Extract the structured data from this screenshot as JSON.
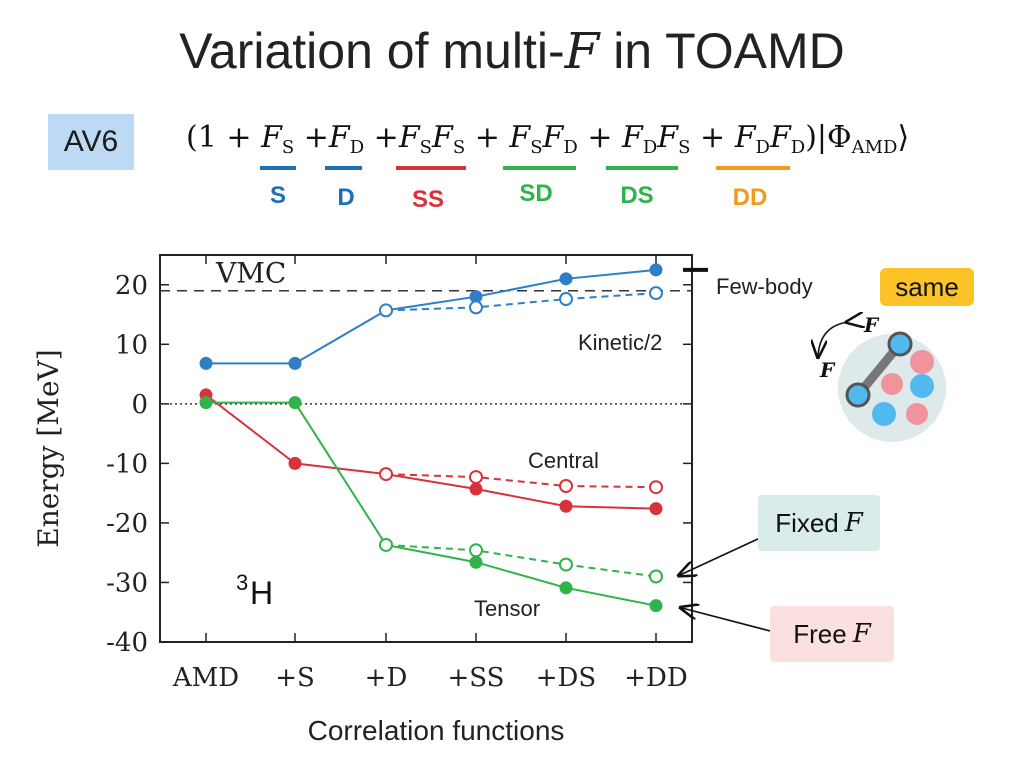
{
  "title": {
    "prefix": "Variation of multi-",
    "math": "F",
    "suffix": " in TOAMD"
  },
  "badge": "AV6",
  "formula": {
    "open": "(1 + ",
    "terms": [
      {
        "base": "F",
        "sub": "S",
        "join": " +"
      },
      {
        "base": "F",
        "sub": "D",
        "join": " +"
      },
      {
        "base": "F",
        "sub": "S",
        "base2": "F",
        "sub2": "S",
        "join": " + "
      },
      {
        "base": "F",
        "sub": "S",
        "base2": "F",
        "sub2": "D",
        "join": " + "
      },
      {
        "base": "F",
        "sub": "D",
        "base2": "F",
        "sub2": "S",
        "join": " + "
      },
      {
        "base": "F",
        "sub": "D",
        "base2": "F",
        "sub2": "D",
        "join": ""
      }
    ],
    "close": ")|Φ",
    "close_sub": "AMD",
    "ket": "⟩"
  },
  "tags": [
    {
      "label": "S",
      "color": "#1f6fb5"
    },
    {
      "label": "D",
      "color": "#1f6fb5"
    },
    {
      "label": "SS",
      "color": "#d6333a"
    },
    {
      "label": "SD",
      "color": "#2fb34a"
    },
    {
      "label": "DS",
      "color": "#2fb34a"
    },
    {
      "label": "DD",
      "color": "#f39a1e"
    }
  ],
  "annotations": {
    "few_body": "Few-body",
    "same": "same",
    "kinetic": "Kinetic/2",
    "central": "Central",
    "tensor": "Tensor",
    "fixed": {
      "text": "Fixed",
      "math": "F"
    },
    "free": {
      "text": "Free",
      "math": "F"
    },
    "nucleus_mass": "3",
    "nucleus_symbol": "H",
    "vmc": "VMC",
    "diagram_label_f": "F"
  },
  "chart_data": {
    "type": "line",
    "categories": [
      "AMD",
      "+S",
      "+D",
      "+SS",
      "+DS",
      "+DD"
    ],
    "xlabel": "Correlation functions",
    "ylabel": "Energy [MeV]",
    "ylim": [
      -40,
      25
    ],
    "yticks": [
      20,
      10,
      0,
      -10,
      -20,
      -30,
      -40
    ],
    "reference_lines": [
      {
        "name": "VMC",
        "value": 19,
        "style": "dashed"
      },
      {
        "name": "zero",
        "value": 0,
        "style": "dotted"
      }
    ],
    "few_body_marker": 22.5,
    "series": [
      {
        "group": "kinetic",
        "variant": "free",
        "color": "#2f7fc6",
        "style": "solid",
        "marker": "filled",
        "values": [
          6.8,
          6.8,
          15.7,
          18.0,
          21.0,
          22.5
        ]
      },
      {
        "group": "kinetic",
        "variant": "fixed",
        "color": "#2f7fc6",
        "style": "dashed",
        "marker": "open",
        "values": [
          null,
          null,
          15.7,
          16.2,
          17.6,
          18.6
        ]
      },
      {
        "group": "central",
        "variant": "free",
        "color": "#d6333a",
        "style": "solid",
        "marker": "filled",
        "values": [
          1.5,
          -10.0,
          -11.8,
          -14.3,
          -17.2,
          -17.6
        ]
      },
      {
        "group": "central",
        "variant": "fixed",
        "color": "#d6333a",
        "style": "dashed",
        "marker": "open",
        "values": [
          null,
          null,
          -11.8,
          -12.3,
          -13.8,
          -14.0
        ]
      },
      {
        "group": "tensor",
        "variant": "free",
        "color": "#2fb34a",
        "style": "solid",
        "marker": "filled",
        "values": [
          0.2,
          0.2,
          -23.7,
          -26.6,
          -30.9,
          -33.9
        ]
      },
      {
        "group": "tensor",
        "variant": "fixed",
        "color": "#2fb34a",
        "style": "dashed",
        "marker": "open",
        "values": [
          null,
          null,
          -23.7,
          -24.6,
          -27.0,
          -29.0
        ]
      }
    ]
  }
}
